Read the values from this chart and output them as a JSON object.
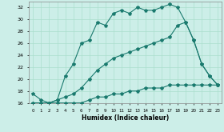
{
  "xlabel": "Humidex (Indice chaleur)",
  "bg_color": "#cceee8",
  "line_color": "#1a7a6e",
  "grid_color": "#aaddcc",
  "xlim": [
    -0.5,
    23.5
  ],
  "ylim": [
    16,
    33
  ],
  "xticks": [
    0,
    1,
    2,
    3,
    4,
    5,
    6,
    7,
    8,
    9,
    10,
    11,
    12,
    13,
    14,
    15,
    16,
    17,
    18,
    19,
    20,
    21,
    22,
    23
  ],
  "yticks": [
    16,
    18,
    20,
    22,
    24,
    26,
    28,
    30,
    32
  ],
  "line1_x": [
    0,
    1,
    2,
    3,
    4,
    5,
    6,
    7,
    8,
    9,
    10,
    11,
    12,
    13,
    14,
    15,
    16,
    17,
    18,
    19,
    20,
    21,
    22,
    23
  ],
  "line1_y": [
    17.5,
    16.5,
    16.0,
    16.5,
    20.5,
    22.5,
    26.0,
    26.5,
    29.5,
    29.0,
    31.0,
    31.5,
    31.0,
    32.0,
    31.5,
    31.5,
    32.0,
    32.5,
    32.0,
    29.5,
    26.5,
    22.5,
    20.5,
    19.0
  ],
  "line2_x": [
    0,
    1,
    2,
    3,
    4,
    5,
    6,
    7,
    8,
    9,
    10,
    11,
    12,
    13,
    14,
    15,
    16,
    17,
    18,
    19,
    20,
    21,
    22,
    23
  ],
  "line2_y": [
    16.0,
    16.0,
    16.0,
    16.5,
    17.0,
    17.5,
    18.5,
    20.0,
    21.5,
    22.5,
    23.5,
    24.0,
    24.5,
    25.0,
    25.5,
    26.0,
    26.5,
    27.0,
    29.0,
    29.5,
    26.5,
    22.5,
    20.5,
    19.0
  ],
  "line3_x": [
    0,
    1,
    2,
    3,
    4,
    5,
    6,
    7,
    8,
    9,
    10,
    11,
    12,
    13,
    14,
    15,
    16,
    17,
    18,
    19,
    20,
    21,
    22,
    23
  ],
  "line3_y": [
    16.0,
    16.0,
    16.0,
    16.0,
    16.0,
    16.0,
    16.0,
    16.5,
    17.0,
    17.0,
    17.5,
    17.5,
    18.0,
    18.0,
    18.5,
    18.5,
    18.5,
    19.0,
    19.0,
    19.0,
    19.0,
    19.0,
    19.0,
    19.0
  ]
}
